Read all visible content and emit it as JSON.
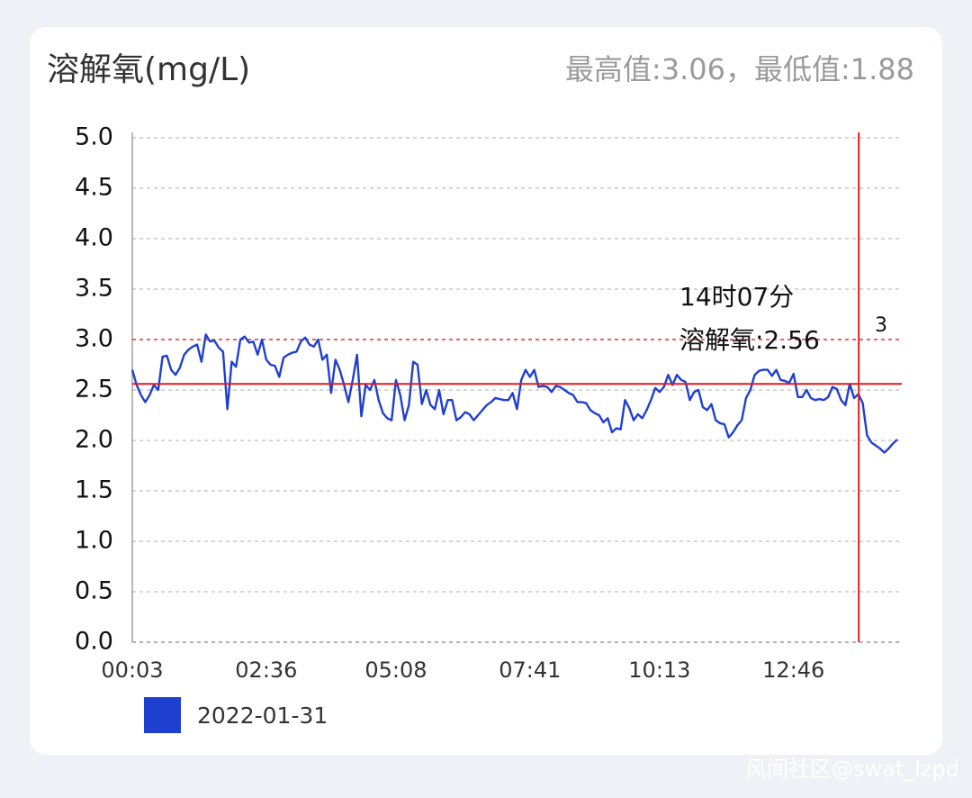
{
  "chart_data": {
    "type": "line",
    "title": "溶解氧(mg/L)",
    "subtitle": "最高值:3.06，最低值:1.88",
    "categories": [
      "00:03",
      null,
      null,
      null,
      null,
      null,
      null,
      null,
      null,
      null,
      null,
      null,
      null,
      null,
      null,
      null,
      null,
      null,
      null,
      null,
      null,
      null,
      null,
      null,
      null,
      null,
      null,
      null,
      null,
      null,
      null,
      "02:36",
      null,
      null,
      null,
      null,
      null,
      null,
      null,
      null,
      null,
      null,
      null,
      null,
      null,
      null,
      null,
      null,
      null,
      null,
      null,
      null,
      null,
      null,
      null,
      null,
      null,
      null,
      null,
      null,
      null,
      "05:08",
      null,
      null,
      null,
      null,
      null,
      null,
      null,
      null,
      null,
      null,
      null,
      null,
      null,
      null,
      null,
      null,
      null,
      null,
      null,
      null,
      null,
      null,
      null,
      null,
      null,
      null,
      null,
      null,
      null,
      null,
      "07:41",
      null,
      null,
      null,
      null,
      null,
      null,
      null,
      null,
      null,
      null,
      null,
      null,
      null,
      null,
      null,
      null,
      null,
      null,
      null,
      null,
      null,
      null,
      null,
      null,
      null,
      null,
      null,
      null,
      null,
      "10:13",
      null,
      null,
      null,
      null,
      null,
      null,
      null,
      null,
      null,
      null,
      null,
      null,
      null,
      null,
      null,
      null,
      null,
      null,
      null,
      null,
      null,
      null,
      null,
      null,
      null,
      null,
      null,
      null,
      null,
      null,
      "12:46",
      null,
      null,
      null,
      null,
      null,
      null,
      null,
      null,
      null,
      null,
      null,
      null,
      null,
      null,
      null,
      null,
      null,
      null,
      null,
      null,
      null,
      null,
      null,
      null
    ],
    "series": [
      {
        "name": "2022-01-31",
        "color": "#1f3fd1",
        "values": [
          2.7,
          2.55,
          2.45,
          2.38,
          2.45,
          2.55,
          2.5,
          2.83,
          2.84,
          2.7,
          2.65,
          2.72,
          2.85,
          2.9,
          2.93,
          2.95,
          2.78,
          3.05,
          2.98,
          2.99,
          2.92,
          2.88,
          2.31,
          2.78,
          2.73,
          3.0,
          3.03,
          2.97,
          2.98,
          2.85,
          3.0,
          2.8,
          2.75,
          2.74,
          2.63,
          2.82,
          2.85,
          2.87,
          2.88,
          2.98,
          3.02,
          2.95,
          2.93,
          3.0,
          2.8,
          2.85,
          2.47,
          2.8,
          2.7,
          2.55,
          2.38,
          2.6,
          2.85,
          2.24,
          2.55,
          2.5,
          2.6,
          2.4,
          2.27,
          2.22,
          2.2,
          2.6,
          2.45,
          2.2,
          2.35,
          2.78,
          2.75,
          2.36,
          2.5,
          2.35,
          2.31,
          2.5,
          2.26,
          2.4,
          2.4,
          2.2,
          2.23,
          2.28,
          2.26,
          2.2,
          2.25,
          2.3,
          2.35,
          2.38,
          2.42,
          2.41,
          2.4,
          2.4,
          2.47,
          2.31,
          2.6,
          2.7,
          2.63,
          2.7,
          2.53,
          2.54,
          2.53,
          2.48,
          2.54,
          2.53,
          2.5,
          2.47,
          2.45,
          2.38,
          2.38,
          2.37,
          2.3,
          2.27,
          2.25,
          2.18,
          2.22,
          2.08,
          2.12,
          2.11,
          2.4,
          2.32,
          2.2,
          2.26,
          2.22,
          2.3,
          2.4,
          2.52,
          2.48,
          2.53,
          2.65,
          2.55,
          2.65,
          2.6,
          2.58,
          2.4,
          2.48,
          2.5,
          2.33,
          2.3,
          2.36,
          2.2,
          2.17,
          2.16,
          2.03,
          2.08,
          2.15,
          2.2,
          2.42,
          2.5,
          2.65,
          2.69,
          2.7,
          2.7,
          2.64,
          2.7,
          2.6,
          2.59,
          2.57,
          2.66,
          2.43,
          2.43,
          2.5,
          2.42,
          2.4,
          2.41,
          2.4,
          2.43,
          2.53,
          2.51,
          2.4,
          2.35,
          2.56,
          2.42,
          2.46,
          2.37,
          2.05,
          1.98,
          1.95,
          1.92,
          1.88,
          1.92,
          1.97,
          2.01
        ]
      }
    ],
    "ylim": [
      0,
      5
    ],
    "yticks": [
      {
        "value": 0,
        "label": "0.0"
      },
      0.5,
      {
        "value": 1,
        "label": "1.0"
      },
      1.5,
      {
        "value": 2,
        "label": "2.0"
      },
      2.5,
      {
        "value": 3,
        "label": "3.0"
      },
      3.5,
      {
        "value": 4,
        "label": "4.0"
      },
      4.5,
      {
        "value": 5,
        "label": "5.0"
      }
    ],
    "grid": true,
    "mark_line": {
      "value": 3,
      "color": "#e03a3a"
    },
    "crosshair": {
      "value": 2.56,
      "color": "#dd1e1e",
      "time_label": "14时07分",
      "value_label": "溶解氧:2.56"
    },
    "watermark": "风闻社区@swat_lzpd"
  }
}
